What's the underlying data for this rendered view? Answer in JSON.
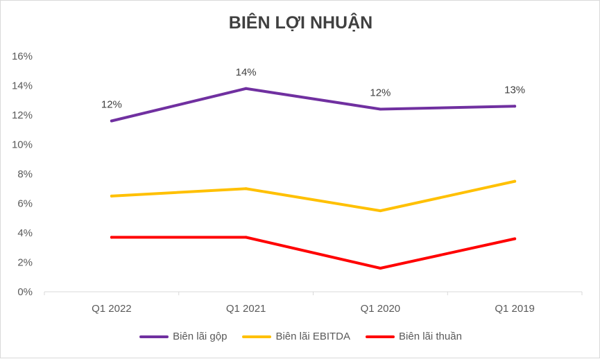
{
  "chart_data": {
    "type": "line",
    "title": "BIÊN LỢI NHUẬN",
    "xlabel": "",
    "ylabel": "",
    "categories": [
      "Q1 2022",
      "Q1 2021",
      "Q1 2020",
      "Q1 2019"
    ],
    "ylim": [
      0,
      0.16
    ],
    "yticks": [
      "0%",
      "2%",
      "4%",
      "6%",
      "8%",
      "10%",
      "12%",
      "14%",
      "16%"
    ],
    "grid": false,
    "legend_position": "bottom",
    "series": [
      {
        "name": "Biên lãi gộp",
        "color": "#7030A0",
        "values": [
          0.116,
          0.138,
          0.124,
          0.126
        ],
        "data_labels": [
          "12%",
          "14%",
          "12%",
          "13%"
        ]
      },
      {
        "name": "Biên lãi EBITDA",
        "color": "#FFC000",
        "values": [
          0.065,
          0.07,
          0.055,
          0.075
        ]
      },
      {
        "name": "Biên lãi thuần",
        "color": "#FF0000",
        "values": [
          0.037,
          0.037,
          0.016,
          0.036
        ]
      }
    ]
  }
}
